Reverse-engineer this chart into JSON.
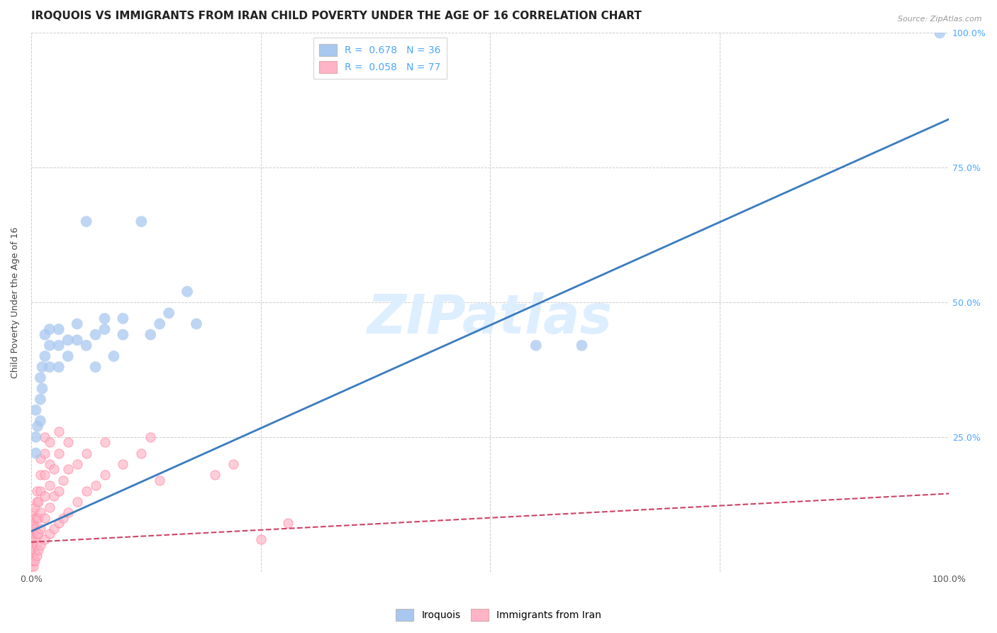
{
  "title": "IROQUOIS VS IMMIGRANTS FROM IRAN CHILD POVERTY UNDER THE AGE OF 16 CORRELATION CHART",
  "source": "Source: ZipAtlas.com",
  "ylabel": "Child Poverty Under the Age of 16",
  "xlim": [
    0,
    1.0
  ],
  "ylim": [
    0,
    1.0
  ],
  "xticks": [
    0.0,
    0.25,
    0.5,
    0.75,
    1.0
  ],
  "yticks": [
    0.0,
    0.25,
    0.5,
    0.75,
    1.0
  ],
  "xticklabels": [
    "0.0%",
    "",
    "",
    "",
    "100.0%"
  ],
  "right_yticklabels": [
    "",
    "25.0%",
    "50.0%",
    "75.0%",
    "100.0%"
  ],
  "watermark": "ZIPatlas",
  "blue_scatter": [
    [
      0.005,
      0.22
    ],
    [
      0.005,
      0.25
    ],
    [
      0.005,
      0.3
    ],
    [
      0.007,
      0.27
    ],
    [
      0.01,
      0.28
    ],
    [
      0.01,
      0.32
    ],
    [
      0.01,
      0.36
    ],
    [
      0.012,
      0.38
    ],
    [
      0.012,
      0.34
    ],
    [
      0.015,
      0.4
    ],
    [
      0.015,
      0.44
    ],
    [
      0.02,
      0.38
    ],
    [
      0.02,
      0.42
    ],
    [
      0.02,
      0.45
    ],
    [
      0.03,
      0.42
    ],
    [
      0.03,
      0.45
    ],
    [
      0.03,
      0.38
    ],
    [
      0.04,
      0.4
    ],
    [
      0.04,
      0.43
    ],
    [
      0.05,
      0.43
    ],
    [
      0.05,
      0.46
    ],
    [
      0.06,
      0.65
    ],
    [
      0.06,
      0.42
    ],
    [
      0.07,
      0.38
    ],
    [
      0.07,
      0.44
    ],
    [
      0.08,
      0.45
    ],
    [
      0.08,
      0.47
    ],
    [
      0.09,
      0.4
    ],
    [
      0.1,
      0.44
    ],
    [
      0.1,
      0.47
    ],
    [
      0.12,
      0.65
    ],
    [
      0.13,
      0.44
    ],
    [
      0.14,
      0.46
    ],
    [
      0.15,
      0.48
    ],
    [
      0.17,
      0.52
    ],
    [
      0.18,
      0.46
    ],
    [
      0.55,
      0.42
    ],
    [
      0.6,
      0.42
    ],
    [
      0.99,
      1.0
    ]
  ],
  "pink_scatter": [
    [
      0.0,
      0.01
    ],
    [
      0.0,
      0.02
    ],
    [
      0.0,
      0.03
    ],
    [
      0.0,
      0.04
    ],
    [
      0.0,
      0.05
    ],
    [
      0.0,
      0.06
    ],
    [
      0.0,
      0.07
    ],
    [
      0.0,
      0.08
    ],
    [
      0.0,
      0.09
    ],
    [
      0.002,
      0.01
    ],
    [
      0.002,
      0.02
    ],
    [
      0.002,
      0.03
    ],
    [
      0.002,
      0.05
    ],
    [
      0.002,
      0.07
    ],
    [
      0.002,
      0.09
    ],
    [
      0.002,
      0.11
    ],
    [
      0.004,
      0.02
    ],
    [
      0.004,
      0.04
    ],
    [
      0.004,
      0.06
    ],
    [
      0.004,
      0.08
    ],
    [
      0.004,
      0.1
    ],
    [
      0.004,
      0.12
    ],
    [
      0.006,
      0.03
    ],
    [
      0.006,
      0.05
    ],
    [
      0.006,
      0.07
    ],
    [
      0.006,
      0.1
    ],
    [
      0.006,
      0.13
    ],
    [
      0.006,
      0.15
    ],
    [
      0.008,
      0.04
    ],
    [
      0.008,
      0.07
    ],
    [
      0.008,
      0.1
    ],
    [
      0.008,
      0.13
    ],
    [
      0.01,
      0.05
    ],
    [
      0.01,
      0.08
    ],
    [
      0.01,
      0.11
    ],
    [
      0.01,
      0.15
    ],
    [
      0.01,
      0.18
    ],
    [
      0.01,
      0.21
    ],
    [
      0.015,
      0.06
    ],
    [
      0.015,
      0.1
    ],
    [
      0.015,
      0.14
    ],
    [
      0.015,
      0.18
    ],
    [
      0.015,
      0.22
    ],
    [
      0.015,
      0.25
    ],
    [
      0.02,
      0.07
    ],
    [
      0.02,
      0.12
    ],
    [
      0.02,
      0.16
    ],
    [
      0.02,
      0.2
    ],
    [
      0.02,
      0.24
    ],
    [
      0.025,
      0.08
    ],
    [
      0.025,
      0.14
    ],
    [
      0.025,
      0.19
    ],
    [
      0.03,
      0.09
    ],
    [
      0.03,
      0.15
    ],
    [
      0.03,
      0.22
    ],
    [
      0.03,
      0.26
    ],
    [
      0.035,
      0.1
    ],
    [
      0.035,
      0.17
    ],
    [
      0.04,
      0.11
    ],
    [
      0.04,
      0.19
    ],
    [
      0.04,
      0.24
    ],
    [
      0.05,
      0.13
    ],
    [
      0.05,
      0.2
    ],
    [
      0.06,
      0.15
    ],
    [
      0.06,
      0.22
    ],
    [
      0.07,
      0.16
    ],
    [
      0.08,
      0.18
    ],
    [
      0.08,
      0.24
    ],
    [
      0.1,
      0.2
    ],
    [
      0.12,
      0.22
    ],
    [
      0.13,
      0.25
    ],
    [
      0.14,
      0.17
    ],
    [
      0.2,
      0.18
    ],
    [
      0.22,
      0.2
    ],
    [
      0.25,
      0.06
    ],
    [
      0.28,
      0.09
    ]
  ],
  "blue_line": {
    "x": [
      0.0,
      1.0
    ],
    "y": [
      0.075,
      0.84
    ]
  },
  "pink_line": {
    "x": [
      0.0,
      1.0
    ],
    "y": [
      0.055,
      0.145
    ]
  },
  "blue_scatter_color": "#a8c8f0",
  "pink_scatter_color": "#ffb3c6",
  "blue_line_color": "#3a7bbf",
  "pink_line_color": "#cc4466",
  "background_color": "#ffffff",
  "grid_color": "#c8c8c8",
  "title_fontsize": 11,
  "axis_label_fontsize": 9,
  "tick_fontsize": 9,
  "right_tick_color": "#4da6ff",
  "watermark_color": "#ddeeff",
  "watermark_fontsize": 55
}
